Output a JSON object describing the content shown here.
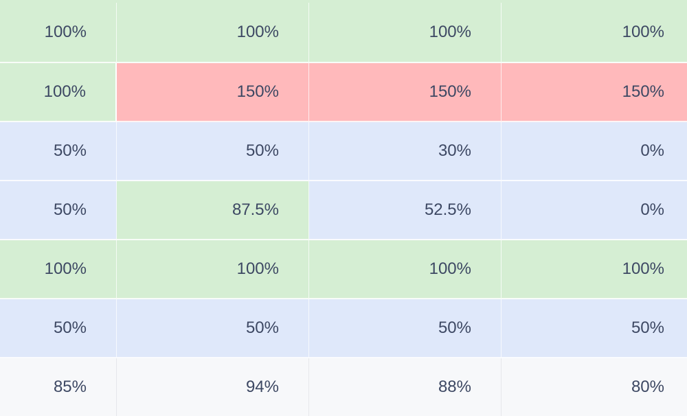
{
  "table": {
    "rows": [
      {
        "cells": [
          {
            "value": "100%",
            "status": "green"
          },
          {
            "value": "100%",
            "status": "green"
          },
          {
            "value": "100%",
            "status": "green"
          },
          {
            "value": "100%",
            "status": "green"
          }
        ]
      },
      {
        "cells": [
          {
            "value": "100%",
            "status": "green"
          },
          {
            "value": "150%",
            "status": "red"
          },
          {
            "value": "150%",
            "status": "red"
          },
          {
            "value": "150%",
            "status": "red"
          }
        ]
      },
      {
        "cells": [
          {
            "value": "50%",
            "status": "blue"
          },
          {
            "value": "50%",
            "status": "blue"
          },
          {
            "value": "30%",
            "status": "blue"
          },
          {
            "value": "0%",
            "status": "blue"
          }
        ]
      },
      {
        "cells": [
          {
            "value": "50%",
            "status": "blue"
          },
          {
            "value": "87.5%",
            "status": "green"
          },
          {
            "value": "52.5%",
            "status": "blue"
          },
          {
            "value": "0%",
            "status": "blue"
          }
        ]
      },
      {
        "cells": [
          {
            "value": "100%",
            "status": "green"
          },
          {
            "value": "100%",
            "status": "green"
          },
          {
            "value": "100%",
            "status": "green"
          },
          {
            "value": "100%",
            "status": "green"
          }
        ]
      },
      {
        "cells": [
          {
            "value": "50%",
            "status": "blue"
          },
          {
            "value": "50%",
            "status": "blue"
          },
          {
            "value": "50%",
            "status": "blue"
          },
          {
            "value": "50%",
            "status": "blue"
          }
        ]
      }
    ],
    "totals": [
      "85%",
      "94%",
      "88%",
      "80%"
    ]
  },
  "colors": {
    "green": "#d5eed3",
    "red": "#ffb9bb",
    "blue": "#dfe8fa",
    "total_bg": "#f7f8fa",
    "text": "#3d4863"
  }
}
